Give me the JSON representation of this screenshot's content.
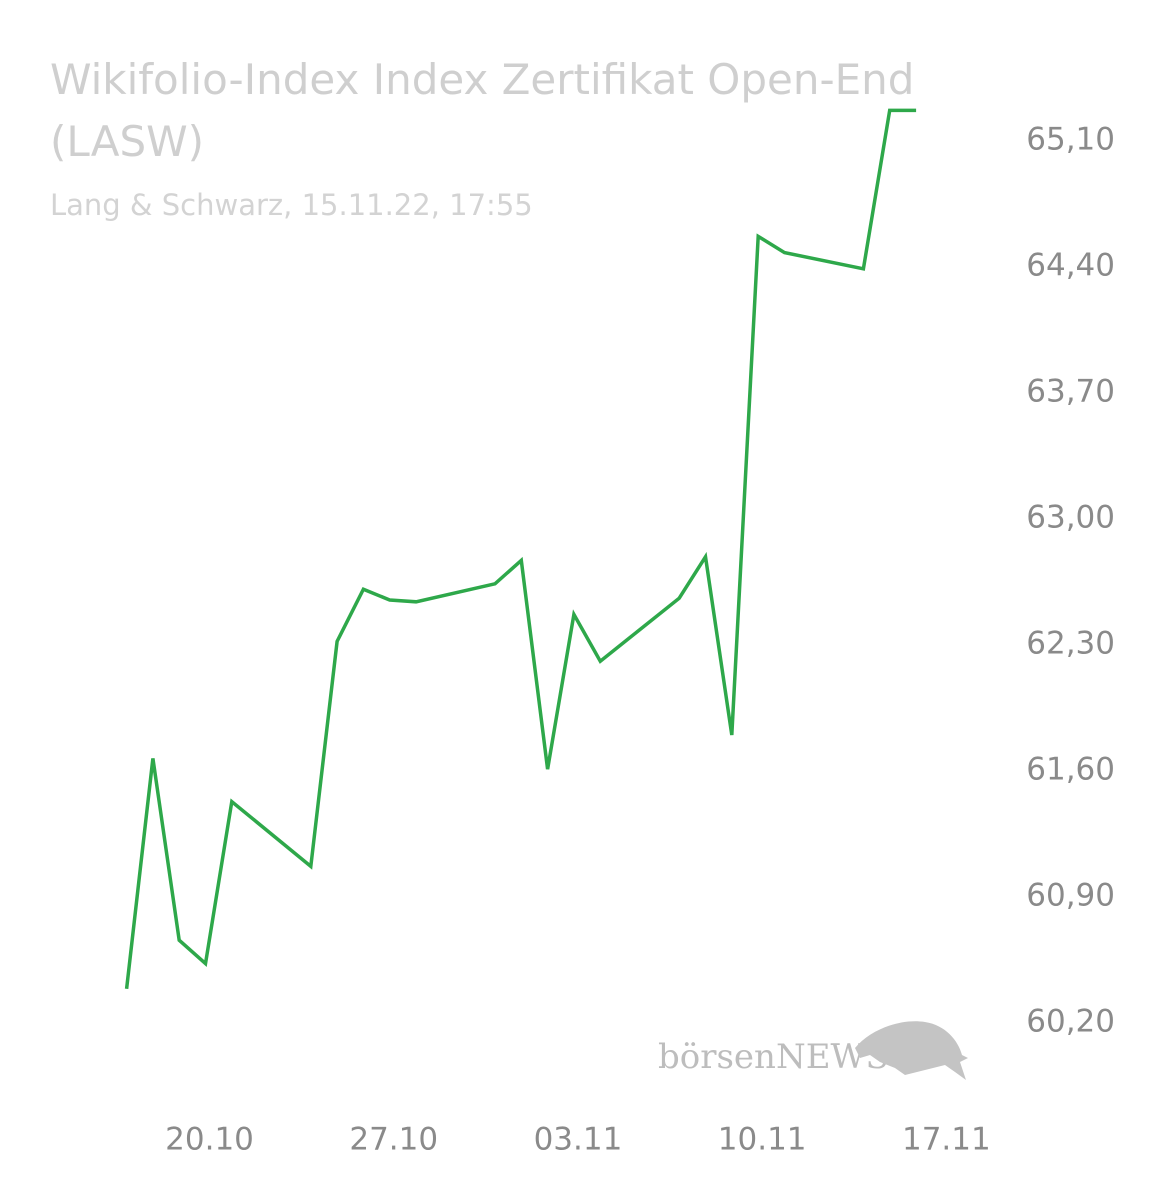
{
  "chart_data": {
    "type": "line",
    "title": "Wikifolio-Index Index Zertifikat Open-End (LASW)",
    "subtitle": "Lang & Schwarz, 15.11.22, 17:55",
    "watermark": "börsenNEWS",
    "x": [
      "17.10",
      "18.10",
      "19.10",
      "20.10",
      "21.10",
      "24.10",
      "25.10",
      "26.10",
      "27.10",
      "28.10",
      "31.10",
      "01.11",
      "02.11",
      "03.11",
      "04.11",
      "07.11",
      "08.11",
      "09.11",
      "10.11",
      "11.11",
      "14.11",
      "15.11",
      "16.11"
    ],
    "series": [
      {
        "color": "#2ea84a",
        "values": [
          60.39,
          61.67,
          60.66,
          60.53,
          61.43,
          61.07,
          62.32,
          62.61,
          62.55,
          62.54,
          62.64,
          62.77,
          61.61,
          62.47,
          62.21,
          62.56,
          62.79,
          61.8,
          64.57,
          64.48,
          64.39,
          65.27,
          65.27
        ]
      }
    ],
    "xlim": [
      "12.10",
      "19.11"
    ],
    "xticks": [
      "20.10",
      "27.10",
      "03.11",
      "10.11",
      "17.11"
    ],
    "ylim": [
      59.8,
      65.9
    ],
    "yticks": [
      {
        "value": 60.2,
        "label": "60,20"
      },
      {
        "value": 60.9,
        "label": "60,90"
      },
      {
        "value": 61.6,
        "label": "61,60"
      },
      {
        "value": 62.3,
        "label": "62,30"
      },
      {
        "value": 63.0,
        "label": "63,00"
      },
      {
        "value": 63.7,
        "label": "63,70"
      },
      {
        "value": 64.4,
        "label": "64,40"
      },
      {
        "value": 65.1,
        "label": "65,10"
      }
    ],
    "grid": false
  }
}
